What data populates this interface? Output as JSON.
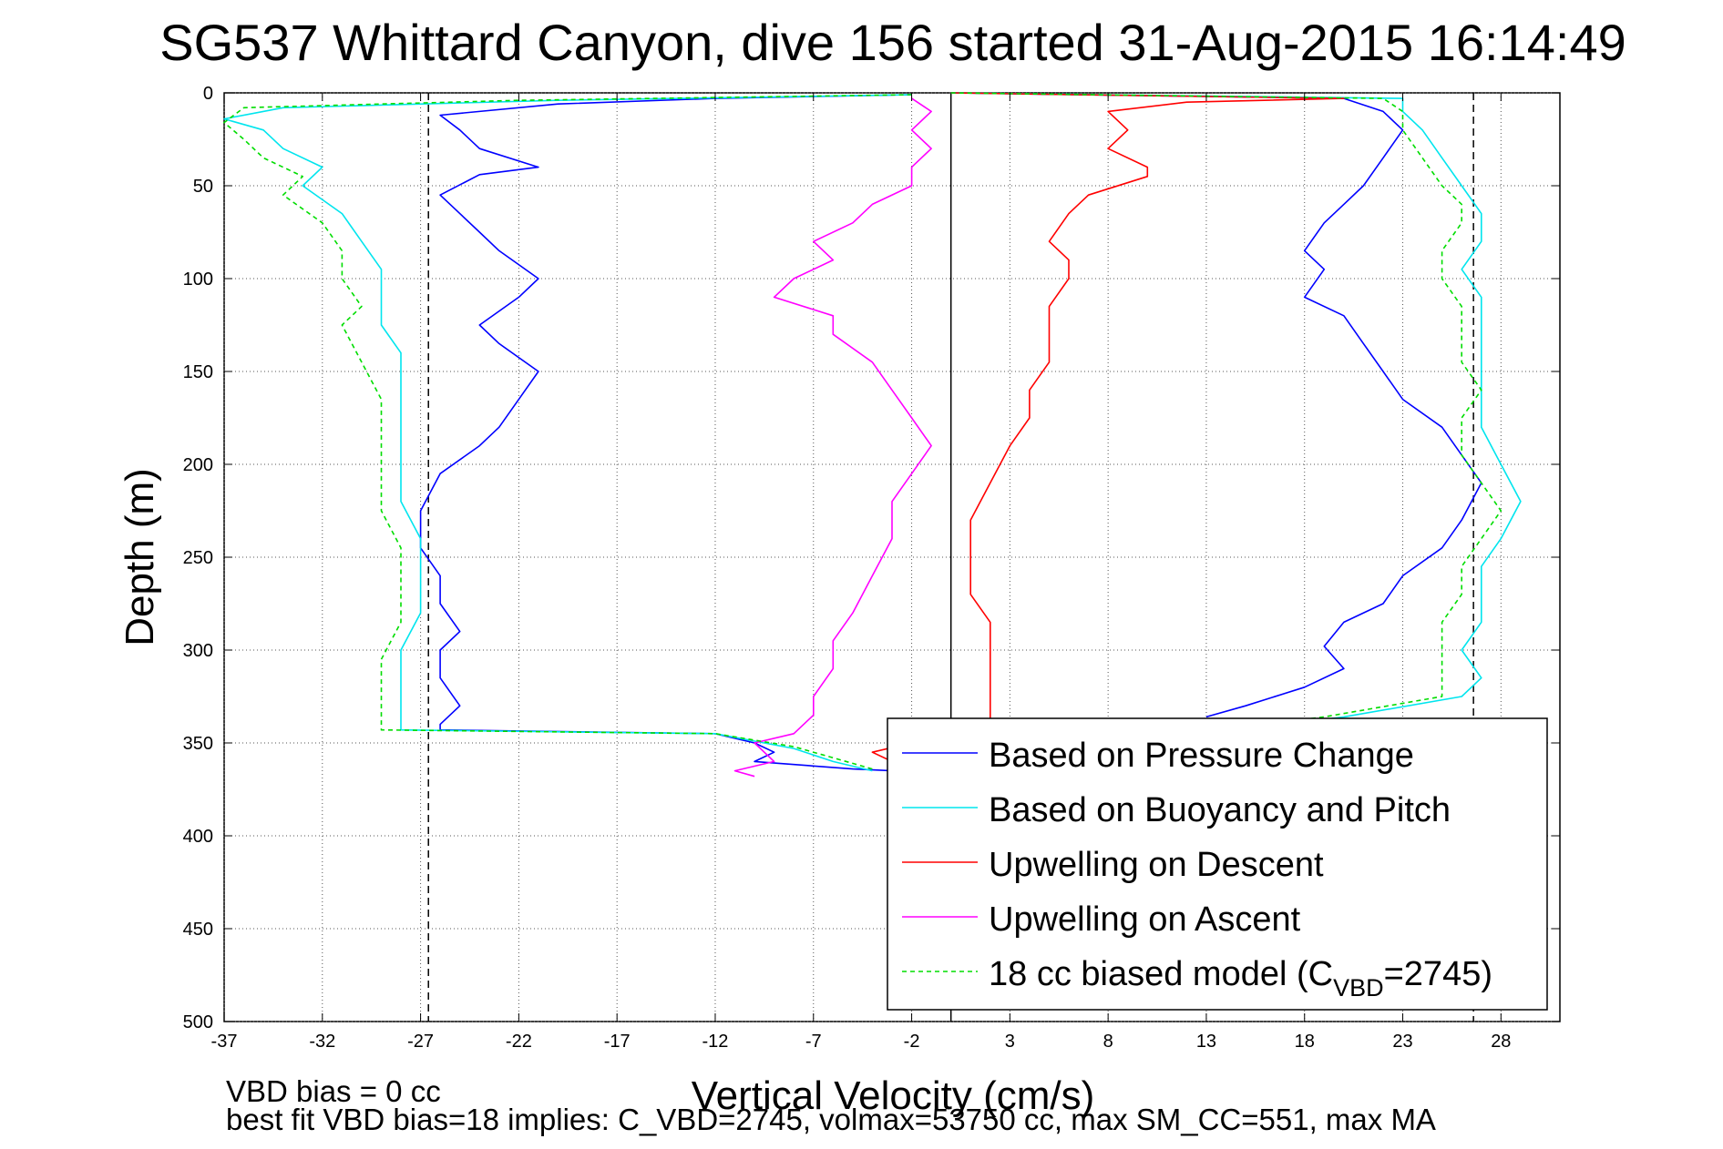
{
  "chart_data": {
    "type": "line",
    "title": "SG537 Whittard Canyon, dive 156 started 31-Aug-2015 16:14:49",
    "xlabel": "Vertical Velocity (cm/s)",
    "ylabel": "Depth (m)",
    "xlim": [
      -37,
      31
    ],
    "ylim": [
      0,
      500
    ],
    "y_reversed": true,
    "grid": true,
    "legend_position": "bottom-right",
    "x_ticks": [
      "-37",
      "-32",
      "-27",
      "-22",
      "-17",
      "-12",
      "-7",
      "-2",
      "3",
      "8",
      "13",
      "18",
      "23",
      "28"
    ],
    "y_ticks": [
      "0",
      "50",
      "100",
      "150",
      "200",
      "250",
      "300",
      "350",
      "400",
      "450",
      "500"
    ],
    "reference_lines": [
      {
        "x": -26.6,
        "style": "dashed",
        "color": "#000000"
      },
      {
        "x": 0.0,
        "style": "solid",
        "color": "#000000"
      },
      {
        "x": 26.6,
        "style": "dashed",
        "color": "#000000"
      }
    ],
    "series": [
      {
        "name": "Based on Pressure Change",
        "color": "#0000ff",
        "dash": "",
        "points": [
          [
            -2,
            1
          ],
          [
            -12,
            3
          ],
          [
            -20,
            6
          ],
          [
            -26,
            12
          ],
          [
            -25,
            20
          ],
          [
            -24,
            30
          ],
          [
            -21,
            40
          ],
          [
            -24,
            44
          ],
          [
            -26,
            55
          ],
          [
            -25,
            65
          ],
          [
            -24,
            75
          ],
          [
            -23,
            85
          ],
          [
            -21,
            100
          ],
          [
            -22,
            110
          ],
          [
            -24,
            125
          ],
          [
            -23,
            135
          ],
          [
            -21,
            150
          ],
          [
            -22,
            165
          ],
          [
            -23,
            180
          ],
          [
            -24,
            190
          ],
          [
            -26,
            205
          ],
          [
            -27,
            225
          ],
          [
            -27,
            245
          ],
          [
            -26,
            260
          ],
          [
            -26,
            275
          ],
          [
            -25,
            290
          ],
          [
            -26,
            300
          ],
          [
            -26,
            315
          ],
          [
            -25,
            330
          ],
          [
            -26,
            340
          ],
          [
            -26,
            343
          ],
          [
            -12,
            345
          ],
          [
            -10,
            350
          ],
          [
            -9,
            355
          ],
          [
            -10,
            360
          ],
          [
            -5,
            364
          ],
          [
            -3,
            365
          ],
          [
            -3,
            362
          ],
          [
            0,
            0
          ],
          [
            20,
            3
          ],
          [
            22,
            10
          ],
          [
            23,
            20
          ],
          [
            22,
            35
          ],
          [
            21,
            50
          ],
          [
            20,
            60
          ],
          [
            19,
            70
          ],
          [
            18,
            85
          ],
          [
            19,
            95
          ],
          [
            18,
            110
          ],
          [
            20,
            120
          ],
          [
            21,
            135
          ],
          [
            22,
            150
          ],
          [
            23,
            165
          ],
          [
            25,
            180
          ],
          [
            26,
            195
          ],
          [
            27,
            210
          ],
          [
            26,
            230
          ],
          [
            25,
            245
          ],
          [
            23,
            260
          ],
          [
            22,
            275
          ],
          [
            20,
            285
          ],
          [
            19,
            298
          ],
          [
            20,
            310
          ],
          [
            18,
            320
          ],
          [
            15,
            330
          ],
          [
            13,
            336
          ]
        ]
      },
      {
        "name": "Based on Buoyancy and Pitch",
        "color": "#00e5ee",
        "dash": "",
        "points": [
          [
            -2,
            1
          ],
          [
            -20,
            4
          ],
          [
            -34,
            8
          ],
          [
            -37,
            14
          ],
          [
            -35,
            20
          ],
          [
            -34,
            30
          ],
          [
            -32,
            40
          ],
          [
            -33,
            50
          ],
          [
            -31,
            65
          ],
          [
            -30,
            80
          ],
          [
            -29,
            95
          ],
          [
            -29,
            110
          ],
          [
            -29,
            125
          ],
          [
            -28,
            140
          ],
          [
            -28,
            160
          ],
          [
            -28,
            180
          ],
          [
            -28,
            200
          ],
          [
            -28,
            220
          ],
          [
            -27,
            240
          ],
          [
            -27,
            260
          ],
          [
            -27,
            280
          ],
          [
            -28,
            300
          ],
          [
            -28,
            320
          ],
          [
            -28,
            340
          ],
          [
            -28,
            343
          ],
          [
            -12,
            345
          ],
          [
            -8,
            353
          ],
          [
            -6,
            360
          ],
          [
            -4,
            365
          ],
          [
            0,
            0
          ],
          [
            23,
            3
          ],
          [
            23,
            10
          ],
          [
            24,
            20
          ],
          [
            25,
            35
          ],
          [
            26,
            50
          ],
          [
            27,
            65
          ],
          [
            27,
            80
          ],
          [
            26,
            95
          ],
          [
            27,
            110
          ],
          [
            27,
            125
          ],
          [
            27,
            140
          ],
          [
            27,
            160
          ],
          [
            27,
            180
          ],
          [
            28,
            200
          ],
          [
            29,
            220
          ],
          [
            28,
            240
          ],
          [
            27,
            255
          ],
          [
            27,
            270
          ],
          [
            27,
            285
          ],
          [
            26,
            300
          ],
          [
            27,
            315
          ],
          [
            26,
            325
          ],
          [
            20,
            336
          ],
          [
            17,
            340
          ]
        ]
      },
      {
        "name": "Upwelling on Descent",
        "color": "#ff0000",
        "dash": "",
        "points": [
          [
            0,
            0
          ],
          [
            20,
            3
          ],
          [
            12,
            5
          ],
          [
            8,
            10
          ],
          [
            9,
            20
          ],
          [
            8,
            30
          ],
          [
            10,
            40
          ],
          [
            10,
            45
          ],
          [
            7,
            55
          ],
          [
            6,
            65
          ],
          [
            5,
            80
          ],
          [
            6,
            90
          ],
          [
            6,
            100
          ],
          [
            5,
            115
          ],
          [
            5,
            130
          ],
          [
            5,
            145
          ],
          [
            4,
            160
          ],
          [
            4,
            175
          ],
          [
            3,
            190
          ],
          [
            2,
            210
          ],
          [
            1,
            230
          ],
          [
            1,
            250
          ],
          [
            1,
            270
          ],
          [
            2,
            285
          ],
          [
            2,
            295
          ],
          [
            2,
            310
          ],
          [
            2,
            325
          ],
          [
            2,
            340
          ],
          [
            1,
            345
          ],
          [
            -2,
            350
          ],
          [
            -4,
            355
          ],
          [
            -3,
            360
          ],
          [
            -2,
            362
          ]
        ]
      },
      {
        "name": "Upwelling on Ascent",
        "color": "#ff00ff",
        "dash": "",
        "points": [
          [
            -2,
            3
          ],
          [
            -1,
            10
          ],
          [
            -2,
            20
          ],
          [
            -1,
            30
          ],
          [
            -2,
            40
          ],
          [
            -2,
            50
          ],
          [
            -4,
            60
          ],
          [
            -5,
            70
          ],
          [
            -7,
            80
          ],
          [
            -6,
            90
          ],
          [
            -8,
            100
          ],
          [
            -9,
            110
          ],
          [
            -6,
            120
          ],
          [
            -6,
            130
          ],
          [
            -4,
            145
          ],
          [
            -3,
            160
          ],
          [
            -2,
            175
          ],
          [
            -1,
            190
          ],
          [
            -2,
            205
          ],
          [
            -3,
            220
          ],
          [
            -3,
            240
          ],
          [
            -4,
            260
          ],
          [
            -5,
            280
          ],
          [
            -6,
            295
          ],
          [
            -6,
            310
          ],
          [
            -7,
            325
          ],
          [
            -7,
            335
          ],
          [
            -8,
            345
          ],
          [
            -10,
            350
          ],
          [
            -9,
            360
          ],
          [
            -11,
            365
          ],
          [
            -10,
            368
          ]
        ]
      },
      {
        "name": "18 cc biased model (C_VBD=2745)",
        "color": "#00dd00",
        "dash": "5,4",
        "points": [
          [
            -2,
            1
          ],
          [
            -22,
            4
          ],
          [
            -36,
            8
          ],
          [
            -37,
            16
          ],
          [
            -36,
            25
          ],
          [
            -35,
            35
          ],
          [
            -33,
            45
          ],
          [
            -34,
            55
          ],
          [
            -32,
            70
          ],
          [
            -31,
            85
          ],
          [
            -31,
            100
          ],
          [
            -30,
            115
          ],
          [
            -31,
            125
          ],
          [
            -30,
            145
          ],
          [
            -29,
            165
          ],
          [
            -29,
            185
          ],
          [
            -29,
            205
          ],
          [
            -29,
            225
          ],
          [
            -28,
            245
          ],
          [
            -28,
            265
          ],
          [
            -28,
            285
          ],
          [
            -29,
            305
          ],
          [
            -29,
            325
          ],
          [
            -29,
            340
          ],
          [
            -29,
            343
          ],
          [
            -12,
            345
          ],
          [
            -8,
            352
          ],
          [
            -6,
            358
          ],
          [
            -4,
            364
          ],
          [
            0,
            0
          ],
          [
            22,
            3
          ],
          [
            23,
            10
          ],
          [
            23,
            20
          ],
          [
            24,
            35
          ],
          [
            25,
            50
          ],
          [
            26,
            60
          ],
          [
            26,
            70
          ],
          [
            25,
            85
          ],
          [
            25,
            100
          ],
          [
            26,
            115
          ],
          [
            26,
            130
          ],
          [
            26,
            145
          ],
          [
            27,
            160
          ],
          [
            26,
            175
          ],
          [
            26,
            195
          ],
          [
            27,
            210
          ],
          [
            28,
            225
          ],
          [
            27,
            240
          ],
          [
            26,
            255
          ],
          [
            26,
            270
          ],
          [
            25,
            285
          ],
          [
            25,
            300
          ],
          [
            25,
            315
          ],
          [
            25,
            325
          ],
          [
            19,
            336
          ],
          [
            16,
            340
          ]
        ]
      }
    ],
    "legend_entries": [
      {
        "label": "Based on Pressure Change",
        "color": "#0000ff",
        "dash": ""
      },
      {
        "label": "Based on Buoyancy and Pitch",
        "color": "#00e5ee",
        "dash": ""
      },
      {
        "label": "Upwelling on Descent",
        "color": "#ff0000",
        "dash": ""
      },
      {
        "label": "Upwelling on Ascent",
        "color": "#ff00ff",
        "dash": ""
      },
      {
        "label": "18 cc biased model (C",
        "sub": "VBD",
        "suffix": "=2745)",
        "color": "#00dd00",
        "dash": "5,4"
      }
    ],
    "annotations": [
      "VBD bias = 0 cc",
      "best fit VBD bias=18 implies: C_VBD=2745, volmax=53750 cc, max SM_CC=551, max MA"
    ]
  }
}
